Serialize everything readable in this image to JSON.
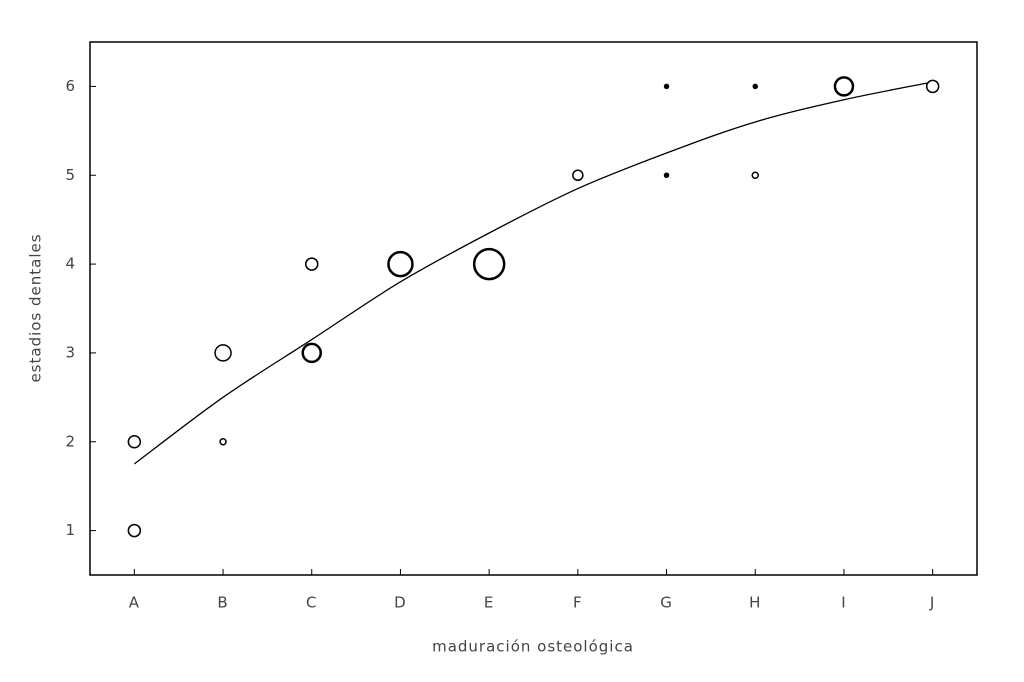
{
  "chart_data": {
    "type": "scatter",
    "x_label": "maduración osteológica",
    "y_label": "estadios dentales",
    "categories": [
      "A",
      "B",
      "C",
      "D",
      "E",
      "F",
      "G",
      "H",
      "I",
      "J"
    ],
    "ylim": [
      0.5,
      6.5
    ],
    "yticks": [
      1,
      2,
      3,
      4,
      5,
      6
    ],
    "grid": false,
    "series": [
      {
        "color": "#000000",
        "x": [
          "A",
          "A",
          "B",
          "B",
          "C",
          "C",
          "D",
          "E",
          "F",
          "G",
          "G",
          "H",
          "H",
          "I",
          "J"
        ],
        "values": [
          2,
          1,
          3,
          2,
          4,
          3,
          4,
          4,
          5,
          6,
          5,
          6,
          5,
          6,
          6
        ],
        "sizes": [
          6,
          6,
          8,
          3,
          6,
          9,
          12,
          15,
          5,
          2,
          2,
          2,
          3,
          9,
          6
        ]
      }
    ],
    "fit": {
      "color": "#000000",
      "values": [
        1.75,
        2.5,
        3.15,
        3.8,
        4.35,
        4.85,
        5.25,
        5.6,
        5.85,
        6.05
      ]
    }
  }
}
